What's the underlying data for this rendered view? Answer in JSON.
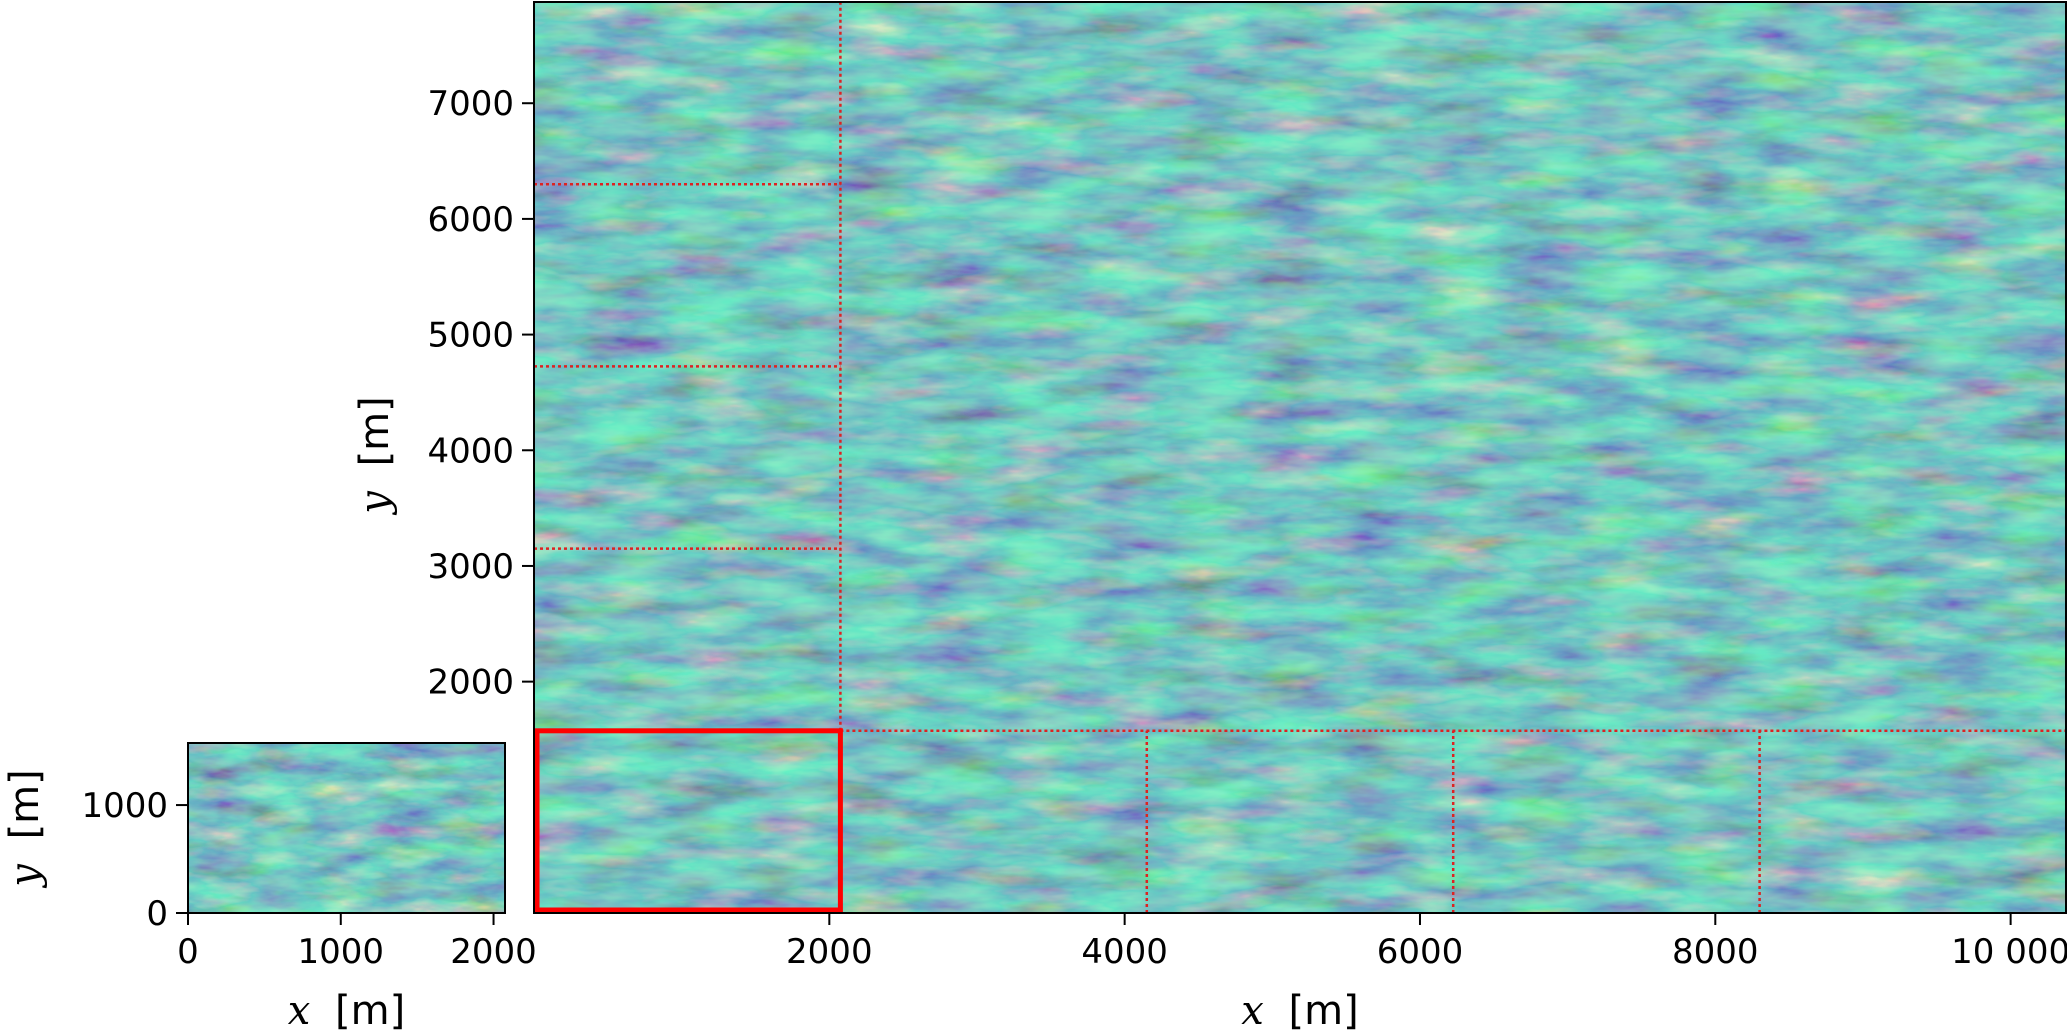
{
  "chart_data": [
    {
      "type": "heatmap",
      "panel": "small-domain",
      "xlabel_var": "x",
      "xlabel_unit": "[m]",
      "ylabel_var": "y",
      "ylabel_unit": "[m]",
      "xlim": [
        0,
        2075
      ],
      "ylim": [
        0,
        1575
      ],
      "xticks": [
        0,
        1000,
        2000
      ],
      "xtick_labels": [
        "0",
        "1000",
        "2000"
      ],
      "yticks": [
        0,
        1000
      ],
      "ytick_labels": [
        "0",
        "1000"
      ],
      "colormap": [
        "#440154",
        "#3b528b",
        "#21918c",
        "#5ec962",
        "#fde725"
      ],
      "dominant_color": "#2a9a8a"
    },
    {
      "type": "heatmap",
      "panel": "large-domain",
      "xlabel_var": "x",
      "xlabel_unit": "[m]",
      "ylabel_var": "y",
      "ylabel_unit": "[m]",
      "xlim": [
        0,
        10375
      ],
      "ylim": [
        0,
        7875
      ],
      "xticks": [
        2000,
        4000,
        6000,
        8000,
        10000
      ],
      "xtick_labels": [
        "2000",
        "4000",
        "6000",
        "8000",
        "10 000"
      ],
      "yticks": [
        2000,
        3000,
        4000,
        5000,
        6000,
        7000
      ],
      "ytick_labels": [
        "2000",
        "3000",
        "4000",
        "5000",
        "6000",
        "7000"
      ],
      "colormap": [
        "#440154",
        "#3b528b",
        "#21918c",
        "#5ec962",
        "#fde725"
      ],
      "dominant_color": "#2a9a8a",
      "highlight_box": {
        "x": [
          0,
          2075
        ],
        "y": [
          0,
          1575
        ],
        "color": "#ff0000"
      },
      "dotted_partition_lines": {
        "color": "#dd2222",
        "vertical": [
          {
            "x": 2075,
            "y": [
              1575,
              7875
            ]
          },
          {
            "x": 4150,
            "y": [
              0,
              1575
            ]
          },
          {
            "x": 6225,
            "y": [
              0,
              1575
            ]
          },
          {
            "x": 8300,
            "y": [
              0,
              1575
            ]
          }
        ],
        "horizontal": [
          {
            "y": 1575,
            "x": [
              2075,
              10375
            ]
          },
          {
            "y": 3150,
            "x": [
              0,
              2075
            ]
          },
          {
            "y": 4725,
            "x": [
              0,
              2075
            ]
          },
          {
            "y": 6300,
            "x": [
              0,
              2075
            ]
          }
        ]
      }
    }
  ]
}
